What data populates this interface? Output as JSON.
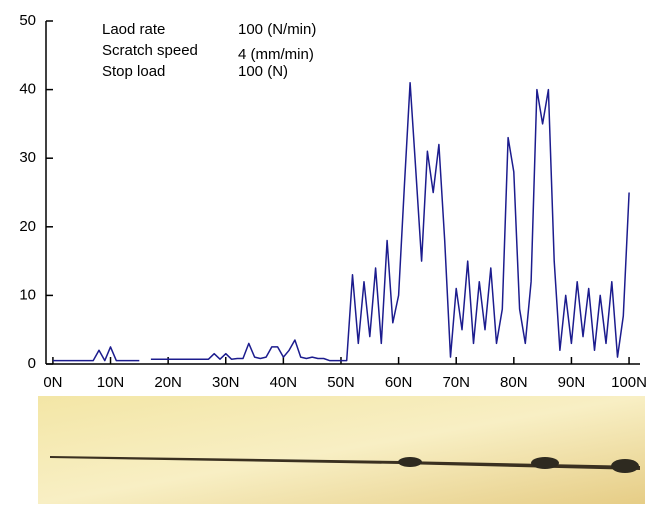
{
  "chart_data": {
    "type": "line",
    "annotations": [
      {
        "name": "Laod rate",
        "text": "100 (N/min)"
      },
      {
        "name": "Scratch speed",
        "text": "4 (mm/min)"
      },
      {
        "name": "Stop load",
        "text": "100 (N)"
      }
    ],
    "x": [
      0,
      1,
      2,
      3,
      4,
      5,
      6,
      7,
      8,
      9,
      10,
      11,
      12,
      13,
      14,
      15,
      16,
      17,
      18,
      19,
      20,
      21,
      22,
      23,
      24,
      25,
      26,
      27,
      28,
      29,
      30,
      31,
      32,
      33,
      34,
      35,
      36,
      37,
      38,
      39,
      40,
      41,
      42,
      43,
      44,
      45,
      46,
      47,
      48,
      49,
      50,
      51,
      52,
      53,
      54,
      55,
      56,
      57,
      58,
      59,
      60,
      61,
      62,
      63,
      64,
      65,
      66,
      67,
      68,
      69,
      70,
      71,
      72,
      73,
      74,
      75,
      76,
      77,
      78,
      79,
      80,
      81,
      82,
      83,
      84,
      85,
      86,
      87,
      88,
      89,
      90,
      91,
      92,
      93,
      94,
      95,
      96,
      97,
      98,
      99,
      100
    ],
    "values": [
      0.5,
      0.5,
      0.5,
      0.5,
      0.5,
      0.5,
      0.5,
      0.5,
      2,
      0.5,
      2.5,
      0.5,
      0.5,
      0.5,
      0.5,
      0.5,
      null,
      0.7,
      0.7,
      0.7,
      0.7,
      0.7,
      0.7,
      0.7,
      0.7,
      0.7,
      0.7,
      0.7,
      1.5,
      0.7,
      1.5,
      0.7,
      0.8,
      0.8,
      3,
      1,
      0.8,
      1,
      2.5,
      2.5,
      1,
      2,
      3.5,
      1,
      0.8,
      1,
      0.8,
      0.8,
      0.5,
      0.5,
      0.5,
      0.5,
      13,
      3,
      12,
      4,
      14,
      3,
      18,
      6,
      10,
      26,
      41,
      28,
      15,
      31,
      25,
      32,
      18,
      1,
      11,
      5,
      15,
      3,
      12,
      5,
      14,
      3,
      8,
      33,
      28,
      8,
      3,
      12,
      40,
      35,
      40,
      15,
      2,
      10,
      3,
      12,
      4,
      11,
      2,
      10,
      3,
      12,
      1,
      7,
      25
    ],
    "color": "#1c1c8e",
    "xlim": [
      -1.2,
      101.9
    ],
    "ylim": [
      0,
      50
    ],
    "xticks": [
      {
        "value": 0,
        "label": "0N"
      },
      {
        "value": 10,
        "label": "10N"
      },
      {
        "value": 20,
        "label": "20N"
      },
      {
        "value": 30,
        "label": "30N"
      },
      {
        "value": 40,
        "label": "40N"
      },
      {
        "value": 50,
        "label": "50N"
      },
      {
        "value": 60,
        "label": "60N"
      },
      {
        "value": 70,
        "label": "70N"
      },
      {
        "value": 80,
        "label": "80N"
      },
      {
        "value": 90,
        "label": "90N"
      },
      {
        "value": 100,
        "label": "100N"
      }
    ],
    "yticks": [
      0,
      10,
      20,
      30,
      40,
      50
    ]
  }
}
